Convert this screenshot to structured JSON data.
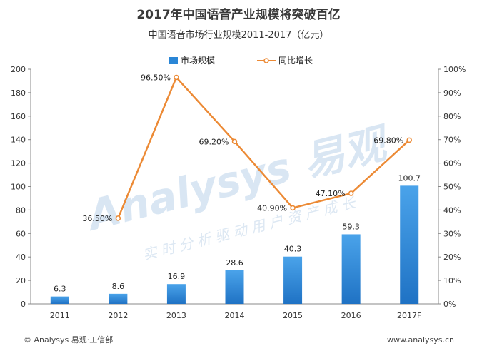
{
  "chart_data": {
    "type": "bar",
    "title": "2017年中国语音产业规模将突破百亿",
    "subtitle": "中国语音市场行业规模2011-2017（亿元）",
    "categories": [
      "2011",
      "2012",
      "2013",
      "2014",
      "2015",
      "2016",
      "2017F"
    ],
    "series": [
      {
        "name": "市场规模",
        "type": "bar",
        "axis": "left",
        "values": [
          6.3,
          8.6,
          16.9,
          28.6,
          40.3,
          59.3,
          100.7
        ],
        "labels": [
          "6.3",
          "8.6",
          "16.9",
          "28.6",
          "40.3",
          "59.3",
          "100.7"
        ],
        "color": "#2a86d6"
      },
      {
        "name": "同比增长",
        "type": "line",
        "axis": "right",
        "values": [
          null,
          36.5,
          96.5,
          69.2,
          40.9,
          47.1,
          69.8
        ],
        "labels": [
          "",
          "36.50%",
          "96.50%",
          "69.20%",
          "40.90%",
          "47.10%",
          "69.80%"
        ],
        "color": "#ec8a35"
      }
    ],
    "y_left": {
      "range": [
        0,
        200
      ],
      "ticks": [
        0,
        20,
        40,
        60,
        80,
        100,
        120,
        140,
        160,
        180,
        200
      ],
      "tick_labels": [
        "0",
        "20",
        "40",
        "60",
        "80",
        "100",
        "120",
        "140",
        "160",
        "180",
        "200"
      ]
    },
    "y_right": {
      "range": [
        0,
        100
      ],
      "ticks": [
        0,
        10,
        20,
        30,
        40,
        50,
        60,
        70,
        80,
        90,
        100
      ],
      "tick_labels": [
        "0%",
        "10%",
        "20%",
        "30%",
        "40%",
        "50%",
        "60%",
        "70%",
        "80%",
        "90%",
        "100%"
      ]
    },
    "grid": false,
    "legend_position": "top-center"
  },
  "watermark": {
    "brand": "Analysys 易观",
    "slogan": "实时分析驱动用户资产成长"
  },
  "footer": {
    "left": "© Analysys 易观·工信部",
    "right": "www.analysys.cn"
  },
  "colors": {
    "bar_light": "#4aa3ea",
    "bar_dark": "#1f72c4",
    "line": "#ec8a35",
    "axis": "#888888"
  }
}
